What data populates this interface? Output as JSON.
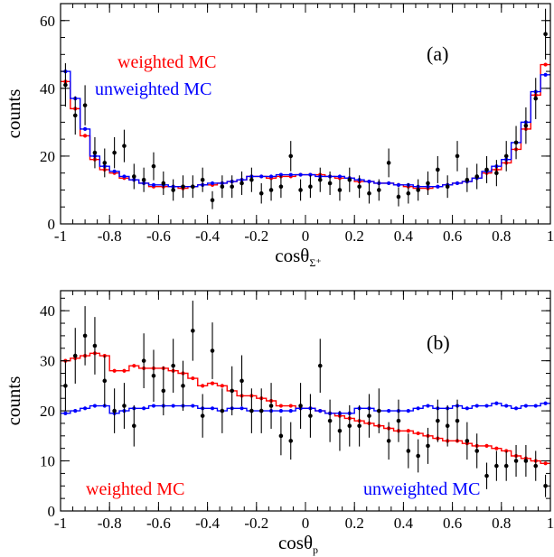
{
  "colors": {
    "weighted": "#ff0000",
    "unweighted": "#0000ff",
    "data": "#000000",
    "frame": "#000000"
  },
  "chart_data": [
    {
      "type": "line",
      "panel_tag": "(a)",
      "xlabel": "cosθ",
      "xlabel_sub": "Σ⁺",
      "ylabel": "counts",
      "xlim": [
        -1,
        1
      ],
      "ylim": [
        0,
        65
      ],
      "xticks": [
        -1,
        -0.8,
        -0.6,
        -0.4,
        -0.2,
        0,
        0.2,
        0.4,
        0.6,
        0.8,
        1
      ],
      "xtick_labels": [
        "-1",
        "-0.8",
        "-0.6",
        "-0.4",
        "-0.2",
        "0",
        "0.2",
        "0.4",
        "0.6",
        "0.8",
        "1"
      ],
      "yticks": [
        0,
        20,
        40,
        60
      ],
      "ytick_labels": [
        "0",
        "20",
        "40",
        "60"
      ],
      "legend": {
        "weighted": "weighted MC",
        "unweighted": "unweighted MC"
      },
      "x": [
        -0.98,
        -0.94,
        -0.9,
        -0.86,
        -0.82,
        -0.78,
        -0.74,
        -0.7,
        -0.66,
        -0.62,
        -0.58,
        -0.54,
        -0.5,
        -0.46,
        -0.42,
        -0.38,
        -0.34,
        -0.3,
        -0.26,
        -0.22,
        -0.18,
        -0.14,
        -0.1,
        -0.06,
        -0.02,
        0.02,
        0.06,
        0.1,
        0.14,
        0.18,
        0.22,
        0.26,
        0.3,
        0.34,
        0.38,
        0.42,
        0.46,
        0.5,
        0.54,
        0.58,
        0.62,
        0.66,
        0.7,
        0.74,
        0.78,
        0.82,
        0.86,
        0.9,
        0.94,
        0.98
      ],
      "series": [
        {
          "name": "weighted MC",
          "kind": "step",
          "color_key": "weighted",
          "values": [
            42,
            34,
            26,
            19,
            16,
            15,
            13.5,
            13,
            12,
            11,
            11,
            11,
            10.5,
            11,
            11.5,
            11.5,
            12,
            12.5,
            13,
            14,
            14,
            13.5,
            14,
            14,
            14.5,
            14.5,
            14.5,
            14,
            13.5,
            13.5,
            12.5,
            12.5,
            12,
            12,
            11.5,
            11,
            10.5,
            10.5,
            11,
            11.5,
            12,
            12.5,
            13.5,
            15,
            16,
            18,
            22,
            28,
            38,
            47
          ]
        },
        {
          "name": "unweighted MC",
          "kind": "step",
          "color_key": "unweighted",
          "values": [
            45,
            37,
            28,
            20,
            17,
            15.5,
            14,
            13,
            12,
            11.5,
            11.5,
            11,
            11,
            11,
            11.5,
            12,
            12,
            12.5,
            13,
            14,
            14,
            14,
            14.5,
            14.5,
            14.5,
            14.5,
            14,
            14,
            14,
            13.5,
            13,
            12.5,
            12,
            12,
            11.5,
            11.5,
            11,
            11,
            11,
            11.5,
            12,
            12.5,
            13.5,
            15.5,
            17,
            19,
            24,
            30,
            39,
            44
          ]
        },
        {
          "name": "data",
          "kind": "points",
          "color_key": "data",
          "values": [
            41,
            32,
            35,
            21,
            18,
            21,
            23,
            14,
            13,
            17,
            12,
            10,
            11,
            11,
            13,
            7,
            11,
            11,
            12,
            13,
            9,
            10,
            11,
            20,
            10,
            11,
            13,
            12,
            10,
            13,
            11,
            9,
            10,
            18,
            8,
            9,
            10,
            12,
            16,
            11,
            20,
            13,
            14,
            16,
            15,
            20,
            24,
            29,
            37,
            56
          ]
        }
      ]
    },
    {
      "type": "line",
      "panel_tag": "(b)",
      "xlabel": "cosθ",
      "xlabel_sub": "p",
      "ylabel": "counts",
      "xlim": [
        -1,
        1
      ],
      "ylim": [
        0,
        44
      ],
      "xticks": [
        -1,
        -0.8,
        -0.6,
        -0.4,
        -0.2,
        0,
        0.2,
        0.4,
        0.6,
        0.8,
        1
      ],
      "xtick_labels": [
        "-1",
        "-0.8",
        "-0.6",
        "-0.4",
        "-0.2",
        "0",
        "0.2",
        "0.4",
        "0.6",
        "0.8",
        "1"
      ],
      "yticks": [
        0,
        10,
        20,
        30,
        40
      ],
      "ytick_labels": [
        "0",
        "10",
        "20",
        "30",
        "40"
      ],
      "legend": {
        "weighted": "weighted MC",
        "unweighted": "unweighted MC"
      },
      "x": [
        -0.98,
        -0.94,
        -0.9,
        -0.86,
        -0.82,
        -0.78,
        -0.74,
        -0.7,
        -0.66,
        -0.62,
        -0.58,
        -0.54,
        -0.5,
        -0.46,
        -0.42,
        -0.38,
        -0.34,
        -0.3,
        -0.26,
        -0.22,
        -0.18,
        -0.14,
        -0.1,
        -0.06,
        -0.02,
        0.02,
        0.06,
        0.1,
        0.14,
        0.18,
        0.22,
        0.26,
        0.3,
        0.34,
        0.38,
        0.42,
        0.46,
        0.5,
        0.54,
        0.58,
        0.62,
        0.66,
        0.7,
        0.74,
        0.78,
        0.82,
        0.86,
        0.9,
        0.94,
        0.98
      ],
      "series": [
        {
          "name": "weighted MC",
          "kind": "step",
          "color_key": "weighted",
          "values": [
            30,
            30.5,
            31,
            31.5,
            31,
            28,
            28,
            29,
            28.5,
            28.5,
            28.5,
            28,
            27.5,
            26.5,
            25,
            25.5,
            25,
            24,
            23,
            23,
            22.5,
            22,
            21,
            21,
            20.5,
            20.5,
            20,
            19.5,
            19,
            18.5,
            18,
            17.5,
            17,
            16.5,
            16,
            16,
            15.5,
            15,
            14.5,
            14,
            14,
            13.5,
            13,
            13,
            12.5,
            12,
            11,
            10.5,
            10,
            9.5
          ]
        },
        {
          "name": "unweighted MC",
          "kind": "step",
          "color_key": "unweighted",
          "values": [
            19.5,
            20,
            20.5,
            21,
            21,
            19.5,
            20,
            20.5,
            20.5,
            21,
            21,
            21,
            21,
            21,
            20.5,
            20.5,
            20,
            20.5,
            20.5,
            20,
            20,
            20,
            20,
            20,
            20.5,
            20.5,
            20,
            19.5,
            19.5,
            19.5,
            20.5,
            20.5,
            20,
            20,
            20,
            20,
            20.5,
            21,
            20.5,
            20.5,
            21,
            20.5,
            21,
            21,
            21.5,
            21,
            20.5,
            21,
            21,
            21.5
          ]
        },
        {
          "name": "data",
          "kind": "points",
          "color_key": "data",
          "values": [
            25,
            31,
            35,
            33,
            26,
            20,
            21,
            17,
            30,
            27,
            24,
            29,
            25,
            36,
            19,
            32,
            20,
            24,
            26,
            20,
            20,
            21,
            15,
            14,
            21,
            19,
            29,
            18,
            16,
            17,
            17,
            19,
            20,
            14,
            18,
            12,
            11,
            13,
            18,
            17,
            18,
            14,
            12,
            7,
            9,
            9,
            10,
            10,
            9,
            5
          ]
        }
      ]
    }
  ]
}
